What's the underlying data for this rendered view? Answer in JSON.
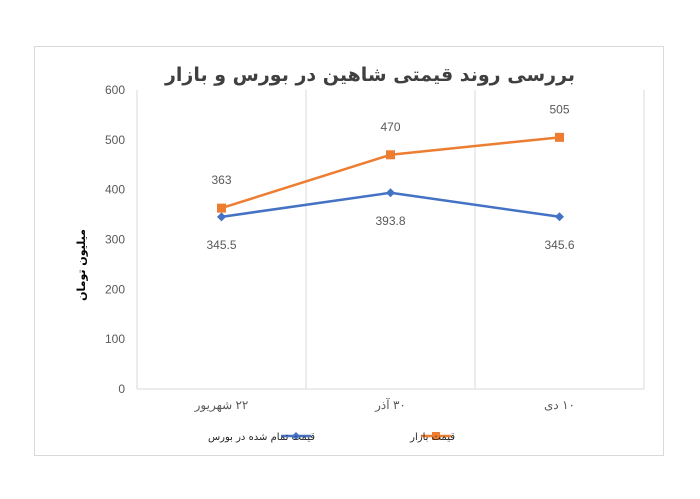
{
  "chart_data": {
    "type": "line",
    "title": "بررسی روند قیمتی شاهین در بورس و بازار",
    "ylabel": "میلیون تومان",
    "xlabel": "",
    "categories": [
      "۲۲ شهریور",
      "۳۰ آذر",
      "۱۰ دی"
    ],
    "ylim": [
      0,
      600
    ],
    "yticks": [
      0,
      100,
      200,
      300,
      400,
      500,
      600
    ],
    "gridlines": "vertical",
    "legend_position": "bottom",
    "series": [
      {
        "name": "قیمت تمام شده در بورس",
        "values": [
          345.5,
          393.8,
          345.6
        ],
        "labels": [
          "345.5",
          "393.8",
          "345.6"
        ],
        "color": "#4472c4",
        "marker": "diamond",
        "label_position": "below"
      },
      {
        "name": "قیمت بازار",
        "values": [
          363,
          470,
          505
        ],
        "labels": [
          "363",
          "470",
          "505"
        ],
        "color": "#ed7d31",
        "marker": "square",
        "label_position": "above"
      }
    ]
  }
}
